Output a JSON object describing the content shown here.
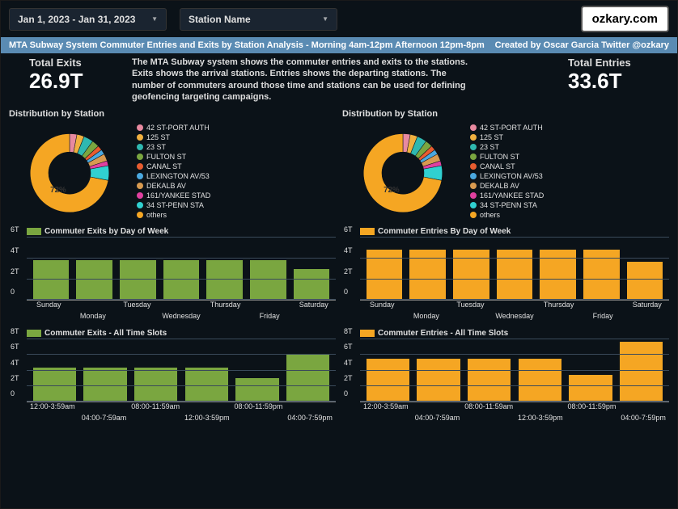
{
  "filters": {
    "date_range": "Jan 1, 2023 - Jan 31, 2023",
    "station_name": "Station Name"
  },
  "logo": "ozkary.com",
  "header": {
    "title": "MTA Subway System Commuter Entries and Exits by Station Analysis -  Morning 4am-12pm Afternoon 12pm-8pm",
    "credit": "Created by Oscar Garcia Twitter @ozkary"
  },
  "description": "The MTA Subway system shows the commuter entries and exits to the stations. Exits shows the arrival stations. Entries shows the departing stations. The number of commuters around those time and stations can be used for defining geofencing targeting campaigns.",
  "exits": {
    "label": "Total Exits",
    "value": "26.9T"
  },
  "entries": {
    "label": "Total Entries",
    "value": "33.6T"
  },
  "distribution_title": "Distribution by Station",
  "donut": {
    "main_pct_label": "72%",
    "slices": [
      {
        "label": "42 ST-PORT AUTH",
        "color": "#e88aa0",
        "pct": 3
      },
      {
        "label": "125 ST",
        "color": "#f0b040",
        "pct": 3
      },
      {
        "label": "23 ST",
        "color": "#2fb8b0",
        "pct": 4
      },
      {
        "label": "FULTON ST",
        "color": "#7aa640",
        "pct": 3
      },
      {
        "label": "CANAL ST",
        "color": "#e85c30",
        "pct": 2
      },
      {
        "label": "LEXINGTON AV/53",
        "color": "#4aa8e0",
        "pct": 2
      },
      {
        "label": "DEKALB AV",
        "color": "#d89a50",
        "pct": 3
      },
      {
        "label": "161/YANKEE STAD",
        "color": "#e040a0",
        "pct": 2
      },
      {
        "label": "34 ST-PENN STA",
        "color": "#30d0d0",
        "pct": 6
      },
      {
        "label": "others",
        "color": "#f5a623",
        "pct": 72
      }
    ]
  },
  "dow_exits": {
    "title": "Commuter Exits by Day of Week",
    "color": "#7aa640",
    "swatch": "#7aa640",
    "ymax": 6,
    "yticks": [
      "0",
      "2T",
      "4T",
      "6T"
    ],
    "labels": [
      "Sunday",
      "Monday",
      "Tuesday",
      "Wednesday",
      "Thursday",
      "Friday",
      "Saturday"
    ],
    "values": [
      3.85,
      3.85,
      3.85,
      3.85,
      3.85,
      3.85,
      3.0
    ]
  },
  "dow_entries": {
    "title": "Commuter Entries By Day of Week",
    "color": "#f5a623",
    "swatch": "#f5a623",
    "ymax": 6,
    "yticks": [
      "0",
      "2T",
      "4T",
      "6T"
    ],
    "labels": [
      "Sunday",
      "Monday",
      "Tuesday",
      "Wednesday",
      "Thursday",
      "Friday",
      "Saturday"
    ],
    "values": [
      4.85,
      4.85,
      4.85,
      4.85,
      4.85,
      4.85,
      3.7
    ]
  },
  "timeslot_exits": {
    "title": "Commuter Exits - All Time Slots",
    "color": "#7aa640",
    "swatch": "#7aa640",
    "ymax": 8,
    "yticks": [
      "0",
      "2T",
      "4T",
      "6T",
      "8T"
    ],
    "labels": [
      "12:00-3:59am",
      "04:00-7:59am",
      "08:00-11:59am",
      "12:00-3:59pm",
      "08:00-11:59pm",
      "04:00-7:59pm"
    ],
    "values": [
      4.4,
      4.4,
      4.4,
      4.4,
      3.0,
      6.1
    ]
  },
  "timeslot_entries": {
    "title": "Commuter Entries - All Time Slots",
    "color": "#f5a623",
    "swatch": "#f5a623",
    "ymax": 8,
    "yticks": [
      "0",
      "2T",
      "4T",
      "6T",
      "8T"
    ],
    "labels": [
      "12:00-3:59am",
      "04:00-7:59am",
      "08:00-11:59am",
      "12:00-3:59pm",
      "08:00-11:59pm",
      "04:00-7:59pm"
    ],
    "values": [
      5.5,
      5.5,
      5.5,
      5.5,
      3.5,
      7.7
    ]
  }
}
